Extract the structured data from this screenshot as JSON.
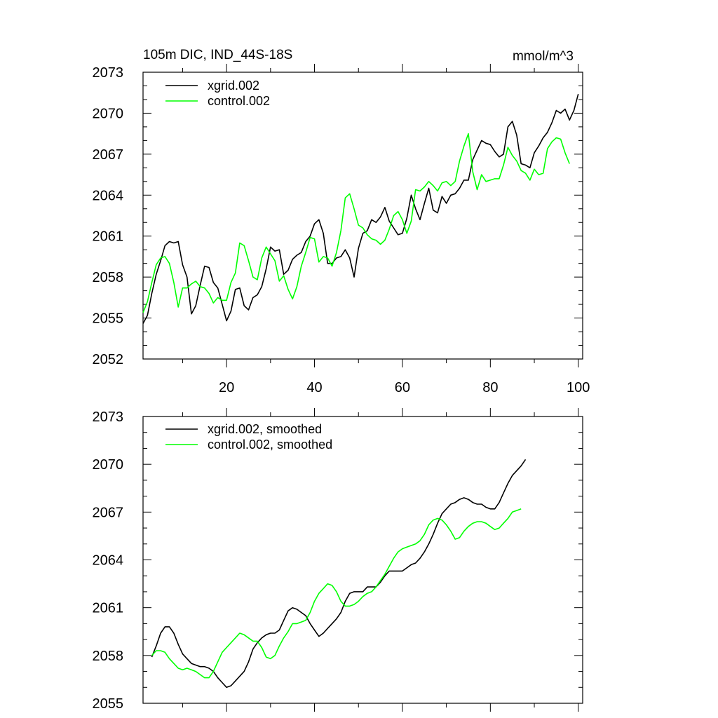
{
  "figure_title": "105m DIC, IND_44S-18S",
  "units_label": "mmol/m^3",
  "chart_data": [
    {
      "type": "line",
      "title": "105m DIC, IND_44S-18S",
      "units": "mmol/m^3",
      "xlabel": "",
      "ylabel": "",
      "xlim": [
        1,
        101
      ],
      "ylim": [
        2052,
        2073
      ],
      "x_ticks": [
        20,
        40,
        60,
        80,
        100
      ],
      "y_ticks": [
        2052,
        2055,
        2058,
        2061,
        2064,
        2067,
        2070,
        2073
      ],
      "x_start": 1,
      "legend_position": "top-left",
      "series": [
        {
          "name": "xgrid.002",
          "color": "#000000",
          "values": [
            2054.6,
            2055.2,
            2056.8,
            2058.2,
            2059.2,
            2060.3,
            2060.6,
            2060.5,
            2060.6,
            2058.9,
            2058.0,
            2055.3,
            2055.9,
            2057.4,
            2058.8,
            2058.7,
            2057.6,
            2057.2,
            2056.0,
            2054.8,
            2055.5,
            2057.1,
            2057.2,
            2055.9,
            2055.6,
            2056.5,
            2056.7,
            2057.3,
            2058.6,
            2060.2,
            2059.9,
            2060.0,
            2058.2,
            2058.5,
            2059.3,
            2059.6,
            2059.8,
            2060.6,
            2061.0,
            2061.9,
            2062.2,
            2061.2,
            2059.0,
            2059.0,
            2059.4,
            2059.5,
            2060.0,
            2059.4,
            2058.0,
            2060.1,
            2061.2,
            2061.4,
            2062.2,
            2062.0,
            2062.4,
            2063.1,
            2062.1,
            2061.6,
            2061.1,
            2061.2,
            2062.3,
            2064.0,
            2063.0,
            2062.2,
            2063.4,
            2064.5,
            2062.9,
            2062.7,
            2063.9,
            2063.4,
            2064.0,
            2064.1,
            2064.5,
            2065.1,
            2065.1,
            2066.6,
            2067.3,
            2068.0,
            2067.8,
            2067.7,
            2067.2,
            2066.8,
            2067.0,
            2069.0,
            2069.4,
            2068.4,
            2066.3,
            2066.2,
            2066.0,
            2067.1,
            2067.6,
            2068.2,
            2068.6,
            2069.3,
            2070.2,
            2070.0,
            2070.3,
            2069.5,
            2070.2,
            2071.4
          ]
        },
        {
          "name": "control.002",
          "color": "#00ff00",
          "values": [
            2055.4,
            2056.2,
            2057.6,
            2058.9,
            2059.4,
            2059.5,
            2059.0,
            2057.6,
            2055.8,
            2057.2,
            2057.2,
            2057.5,
            2057.7,
            2057.3,
            2057.2,
            2056.8,
            2056.1,
            2056.5,
            2056.3,
            2056.3,
            2057.6,
            2058.3,
            2060.5,
            2060.3,
            2059.2,
            2058.0,
            2057.8,
            2059.4,
            2060.2,
            2059.7,
            2059.2,
            2057.7,
            2058.1,
            2057.1,
            2056.4,
            2057.3,
            2058.8,
            2059.8,
            2060.9,
            2060.8,
            2059.1,
            2059.5,
            2059.4,
            2058.8,
            2059.8,
            2061.4,
            2063.8,
            2064.1,
            2063.0,
            2061.8,
            2061.6,
            2061.1,
            2060.8,
            2060.7,
            2060.4,
            2060.7,
            2061.5,
            2062.5,
            2062.8,
            2062.2,
            2061.2,
            2062.1,
            2064.4,
            2064.3,
            2064.6,
            2065.0,
            2064.7,
            2064.3,
            2064.9,
            2065.0,
            2064.7,
            2065.0,
            2066.5,
            2067.6,
            2068.5,
            2065.7,
            2064.4,
            2065.5,
            2065.0,
            2065.1,
            2065.2,
            2065.2,
            2066.2,
            2067.5,
            2066.9,
            2066.5,
            2065.8,
            2065.6,
            2065.1,
            2065.9,
            2065.5,
            2065.6,
            2067.4,
            2067.9,
            2068.2,
            2068.1,
            2067.1,
            2066.3
          ]
        }
      ]
    },
    {
      "type": "line",
      "title": "",
      "xlabel": "",
      "ylabel": "",
      "xlim": [
        1,
        101
      ],
      "ylim": [
        2055,
        2073
      ],
      "x_ticks": [
        20,
        40,
        60,
        80,
        100
      ],
      "y_ticks": [
        2055,
        2058,
        2061,
        2064,
        2067,
        2070,
        2073
      ],
      "x_start": 3,
      "legend_position": "top-left",
      "series": [
        {
          "name": "xgrid.002, smoothed",
          "color": "#000000",
          "values": [
            2057.9,
            2058.6,
            2059.4,
            2059.8,
            2059.8,
            2059.4,
            2058.7,
            2058.1,
            2057.8,
            2057.5,
            2057.4,
            2057.3,
            2057.3,
            2057.2,
            2057.0,
            2056.6,
            2056.3,
            2056.0,
            2056.1,
            2056.4,
            2056.7,
            2057.0,
            2057.6,
            2058.4,
            2058.8,
            2059.1,
            2059.3,
            2059.4,
            2059.4,
            2059.6,
            2060.2,
            2060.8,
            2061.0,
            2060.9,
            2060.7,
            2060.5,
            2060.0,
            2059.6,
            2059.2,
            2059.4,
            2059.7,
            2060.0,
            2060.3,
            2060.7,
            2061.4,
            2061.9,
            2062.0,
            2062.0,
            2062.0,
            2062.3,
            2062.3,
            2062.3,
            2062.6,
            2063.0,
            2063.3,
            2063.3,
            2063.3,
            2063.3,
            2063.5,
            2063.7,
            2063.8,
            2064.1,
            2064.5,
            2065.0,
            2065.6,
            2066.3,
            2066.9,
            2067.2,
            2067.5,
            2067.6,
            2067.8,
            2067.9,
            2067.8,
            2067.6,
            2067.5,
            2067.5,
            2067.3,
            2067.2,
            2067.2,
            2067.6,
            2068.2,
            2068.8,
            2069.3,
            2069.6,
            2069.9,
            2070.3
          ]
        },
        {
          "name": "control.002, smoothed",
          "color": "#00ff00",
          "values": [
            2058.0,
            2058.3,
            2058.3,
            2058.2,
            2057.8,
            2057.5,
            2057.2,
            2057.1,
            2057.2,
            2057.1,
            2057.0,
            2056.8,
            2056.6,
            2056.6,
            2057.0,
            2057.6,
            2058.2,
            2058.5,
            2058.8,
            2059.1,
            2059.4,
            2059.3,
            2059.1,
            2058.9,
            2058.9,
            2058.5,
            2057.9,
            2057.8,
            2058.0,
            2058.6,
            2059.1,
            2059.5,
            2060.0,
            2060.0,
            2060.1,
            2060.2,
            2060.7,
            2061.4,
            2061.9,
            2062.2,
            2062.5,
            2062.4,
            2062.0,
            2061.4,
            2061.1,
            2061.1,
            2061.2,
            2061.4,
            2061.7,
            2061.9,
            2062.0,
            2062.3,
            2062.7,
            2063.1,
            2063.6,
            2064.1,
            2064.5,
            2064.7,
            2064.8,
            2064.9,
            2065.0,
            2065.2,
            2065.6,
            2066.2,
            2066.5,
            2066.6,
            2066.5,
            2066.2,
            2065.8,
            2065.3,
            2065.4,
            2065.8,
            2066.1,
            2066.3,
            2066.4,
            2066.4,
            2066.3,
            2066.1,
            2065.9,
            2066.0,
            2066.3,
            2066.6,
            2067.0,
            2067.1,
            2067.2
          ]
        }
      ]
    }
  ]
}
